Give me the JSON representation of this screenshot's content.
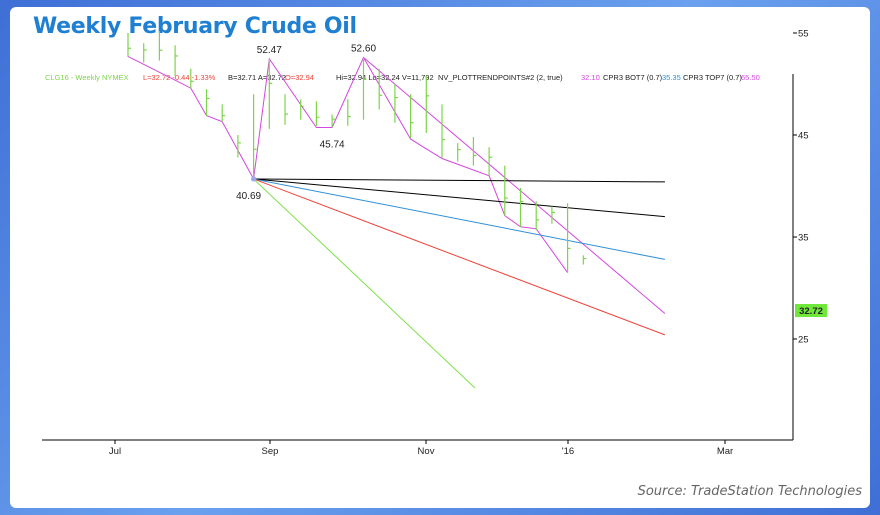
{
  "title": "Weekly February Crude Oil",
  "source": "Source: TradeStation Technologies",
  "colors": {
    "price_bar": "#7dd44a",
    "trend_channel": "#d447e0",
    "black_line": "#000000",
    "blue_line": "#2f8fd8",
    "red_line": "#f0443a",
    "green_line": "#7ee04a",
    "last_badge": "#6fe83a"
  },
  "header": {
    "symbol": "CLG16 - Weekly NYMEX",
    "last": "L=32.72 -0.44 -1.33%",
    "bid_ask_open_prefix": "B=32.71 A=32.72",
    "open": "O=32.94",
    "hi_lo_vol": "Hi=32.94 Lo=32.24 V=11,792",
    "indicator": "NV_PLOTTRENDPOINTS#2 (2, true)",
    "bot_prefix": "32.10",
    "bot_label": "CPR3 BOT7 (0.7)",
    "top_prefix": "35.35",
    "top_label": "CPR3 TOP7 (0.7)",
    "top_value": "65.50"
  },
  "chart_data": {
    "type": "bar",
    "title": "Weekly February Crude Oil",
    "x_ticks": [
      "Jul",
      "Sep",
      "Nov",
      "'16",
      "Mar"
    ],
    "y_ticks": [
      25,
      35,
      45,
      55
    ],
    "ylim": [
      20.2,
      57.2
    ],
    "last_price": "32.72",
    "bars": [
      {
        "w": 0,
        "h": 55.0,
        "l": 52.7
      },
      {
        "w": 1,
        "h": 54.0,
        "l": 52.1
      },
      {
        "w": 2,
        "h": 55.2,
        "l": 52.3
      },
      {
        "w": 3,
        "h": 53.8,
        "l": 50.8
      },
      {
        "w": 4,
        "h": 51.5,
        "l": 49.6
      },
      {
        "w": 5,
        "h": 49.5,
        "l": 46.9
      },
      {
        "w": 6,
        "h": 48.0,
        "l": 46.3
      },
      {
        "w": 7,
        "h": 45.0,
        "l": 42.8
      },
      {
        "w": 8,
        "h": 49.0,
        "l": 40.69
      },
      {
        "w": 9,
        "h": 52.47,
        "l": 45.6
      },
      {
        "w": 10,
        "h": 49.0,
        "l": 46.0
      },
      {
        "w": 11,
        "h": 48.5,
        "l": 46.5
      },
      {
        "w": 12,
        "h": 48.3,
        "l": 45.9
      },
      {
        "w": 13,
        "h": 47.0,
        "l": 45.74
      },
      {
        "w": 14,
        "h": 48.5,
        "l": 45.9
      },
      {
        "w": 15,
        "h": 52.6,
        "l": 46.5
      },
      {
        "w": 16,
        "h": 51.5,
        "l": 47.5
      },
      {
        "w": 17,
        "h": 50.0,
        "l": 46.2
      },
      {
        "w": 18,
        "h": 49.0,
        "l": 44.7
      },
      {
        "w": 19,
        "h": 50.8,
        "l": 45.2
      },
      {
        "w": 20,
        "h": 48.0,
        "l": 42.7
      },
      {
        "w": 21,
        "h": 44.2,
        "l": 42.4
      },
      {
        "w": 22,
        "h": 44.8,
        "l": 42.0
      },
      {
        "w": 23,
        "h": 43.8,
        "l": 41.0
      },
      {
        "w": 24,
        "h": 42.0,
        "l": 37.1
      },
      {
        "w": 25,
        "h": 39.8,
        "l": 36.0
      },
      {
        "w": 26,
        "h": 38.5,
        "l": 35.7
      },
      {
        "w": 27,
        "h": 38.0,
        "l": 36.3
      },
      {
        "w": 28,
        "h": 38.3,
        "l": 31.5
      },
      {
        "w": 29,
        "h": 33.2,
        "l": 32.3
      }
    ],
    "pivots": [
      {
        "w": 8,
        "price": 40.69,
        "label": "40.69",
        "pos": "below"
      },
      {
        "w": 9,
        "price": 52.47,
        "label": "52.47",
        "pos": "above"
      },
      {
        "w": 13,
        "price": 45.74,
        "label": "45.74",
        "pos": "below"
      },
      {
        "w": 15,
        "price": 52.6,
        "label": "52.60",
        "pos": "above"
      }
    ],
    "lines": [
      {
        "name": "trend-zigzag-top",
        "color": "trend_channel",
        "points": [
          [
            0,
            55.0
          ],
          [
            0,
            52.7
          ],
          [
            4,
            49.6
          ],
          [
            5,
            46.9
          ],
          [
            6,
            46.3
          ],
          [
            8,
            40.69
          ],
          [
            9,
            52.47
          ],
          [
            12,
            45.74
          ],
          [
            13,
            45.74
          ],
          [
            15,
            52.6
          ],
          [
            18,
            44.6
          ],
          [
            20,
            42.7
          ],
          [
            23,
            41.0
          ],
          [
            24,
            37.1
          ],
          [
            25,
            36.0
          ],
          [
            26,
            35.8
          ],
          [
            28,
            31.5
          ]
        ]
      },
      {
        "name": "channel-top-line",
        "color": "trend_channel",
        "points": [
          [
            15,
            52.6
          ],
          [
            34.2,
            27.5
          ]
        ]
      },
      {
        "name": "black-horizontal-line",
        "color": "black_line",
        "points": [
          [
            8,
            40.69
          ],
          [
            34.2,
            40.4
          ]
        ]
      },
      {
        "name": "black-sloped-line",
        "color": "black_line",
        "points": [
          [
            8,
            40.69
          ],
          [
            34.2,
            37.0
          ]
        ]
      },
      {
        "name": "blue-line",
        "color": "blue_line",
        "points": [
          [
            8,
            40.69
          ],
          [
            34.2,
            32.8
          ]
        ]
      },
      {
        "name": "red-line",
        "color": "red_line",
        "points": [
          [
            8,
            40.69
          ],
          [
            34.2,
            25.4
          ]
        ]
      },
      {
        "name": "green-line",
        "color": "green_line",
        "points": [
          [
            8,
            40.69
          ],
          [
            22.1,
            20.2
          ]
        ]
      }
    ]
  }
}
